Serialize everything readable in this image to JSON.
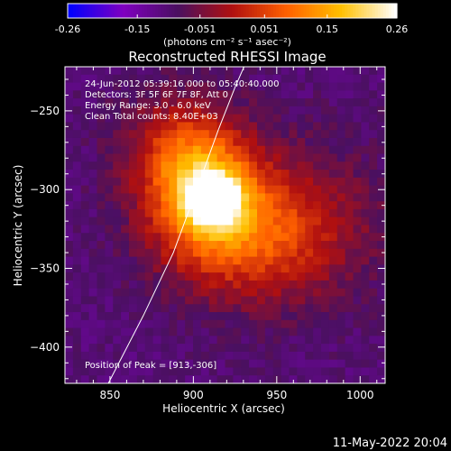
{
  "chart_data": {
    "type": "heatmap",
    "title": "Reconstructed RHESSI Image",
    "xlabel": "Heliocentric X (arcsec)",
    "ylabel": "Heliocentric Y (arcsec)",
    "xlim": [
      823,
      1015
    ],
    "ylim": [
      -423,
      -222
    ],
    "xticks": [
      850,
      900,
      950,
      1000
    ],
    "yticks": [
      -250,
      -300,
      -350,
      -400
    ],
    "colorbar": {
      "label": "(photons cm⁻² s⁻¹ asec⁻²)",
      "ticks": [
        "-0.26",
        "-0.15",
        "-0.051",
        "0.051",
        "0.15",
        "0.26"
      ],
      "range": [
        -0.26,
        0.26
      ],
      "colors": [
        "#0000ff",
        "#8000c0",
        "#4a1060",
        "#b01010",
        "#ff6000",
        "#ffc000",
        "#ffffff"
      ]
    },
    "annotations": [
      "24-Jun-2012 05:39:16.000 to 05:40:40.000",
      "Detectors: 3F 5F 6F 7F 8F, Att 0",
      "Energy Range: 3.0 - 6.0 keV",
      "Clean     Total counts: 8.40E+03"
    ],
    "peak_label": "Position of Peak = [913,-306]",
    "peak": [
      913,
      -306
    ],
    "limb_curve": [
      [
        849,
        -423
      ],
      [
        870,
        -380
      ],
      [
        888,
        -340
      ],
      [
        902,
        -300
      ],
      [
        915,
        -262
      ],
      [
        925,
        -235
      ],
      [
        937,
        -206
      ]
    ],
    "sources": [
      {
        "x": 913,
        "y": -306,
        "amp": 1.0,
        "sx": 9,
        "sy": 9
      },
      {
        "x": 905,
        "y": -300,
        "amp": 0.6,
        "sx": 22,
        "sy": 26
      },
      {
        "x": 930,
        "y": -330,
        "amp": 0.35,
        "sx": 35,
        "sy": 28
      },
      {
        "x": 890,
        "y": -270,
        "amp": 0.25,
        "sx": 25,
        "sy": 25
      },
      {
        "x": 960,
        "y": -320,
        "amp": 0.2,
        "sx": 40,
        "sy": 35
      }
    ]
  },
  "footer": {
    "timestamp": "11-May-2022 20:04"
  }
}
